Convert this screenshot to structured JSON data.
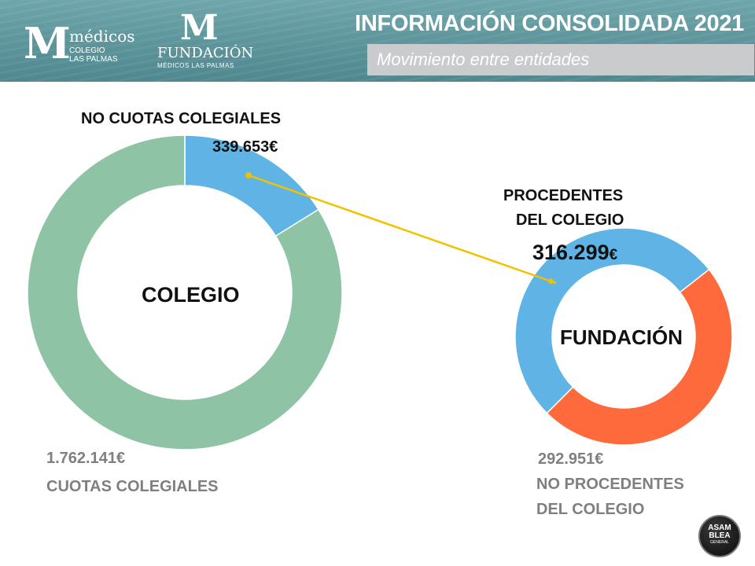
{
  "header": {
    "title": "INFORMACIÓN CONSOLIDADA 2021",
    "subtitle": "Movimiento entre entidades",
    "logo_colegio": {
      "mark": "M",
      "line1": "médicos",
      "line2": "COLEGIO",
      "line3": "LAS PALMAS"
    },
    "logo_fundacion": {
      "mark": "M",
      "line1": "FUNDACIÓN",
      "line2": "MÉDICOS LAS PALMAS"
    }
  },
  "chart_data": [
    {
      "type": "pie",
      "title": "COLEGIO",
      "slices": [
        {
          "label": "NO CUOTAS COLEGIALES",
          "value_text": "339.653€",
          "value": 339653,
          "color": "#5fb4e5"
        },
        {
          "label": "CUOTAS COLEGIALES",
          "value_text": "1.762.141€",
          "value": 1762141,
          "color": "#8ec3a5"
        }
      ]
    },
    {
      "type": "pie",
      "title": "FUNDACIÓN",
      "slices": [
        {
          "label_line1": "PROCEDENTES",
          "label_line2": "DEL COLEGIO",
          "value_text": "316.299€",
          "value_main": "316.299",
          "value_unit": "€",
          "value": 316299,
          "color": "#5fb4e5"
        },
        {
          "label_line1": "NO PROCEDENTES",
          "label_line2": "DEL COLEGIO",
          "value_text": "292.951€",
          "value": 292951,
          "color": "#ff6a3d"
        }
      ]
    }
  ],
  "arrow_color": "#f2c200",
  "badge": {
    "line1": "ASAM",
    "line2": "BLEA",
    "line3": "GENERAL"
  }
}
